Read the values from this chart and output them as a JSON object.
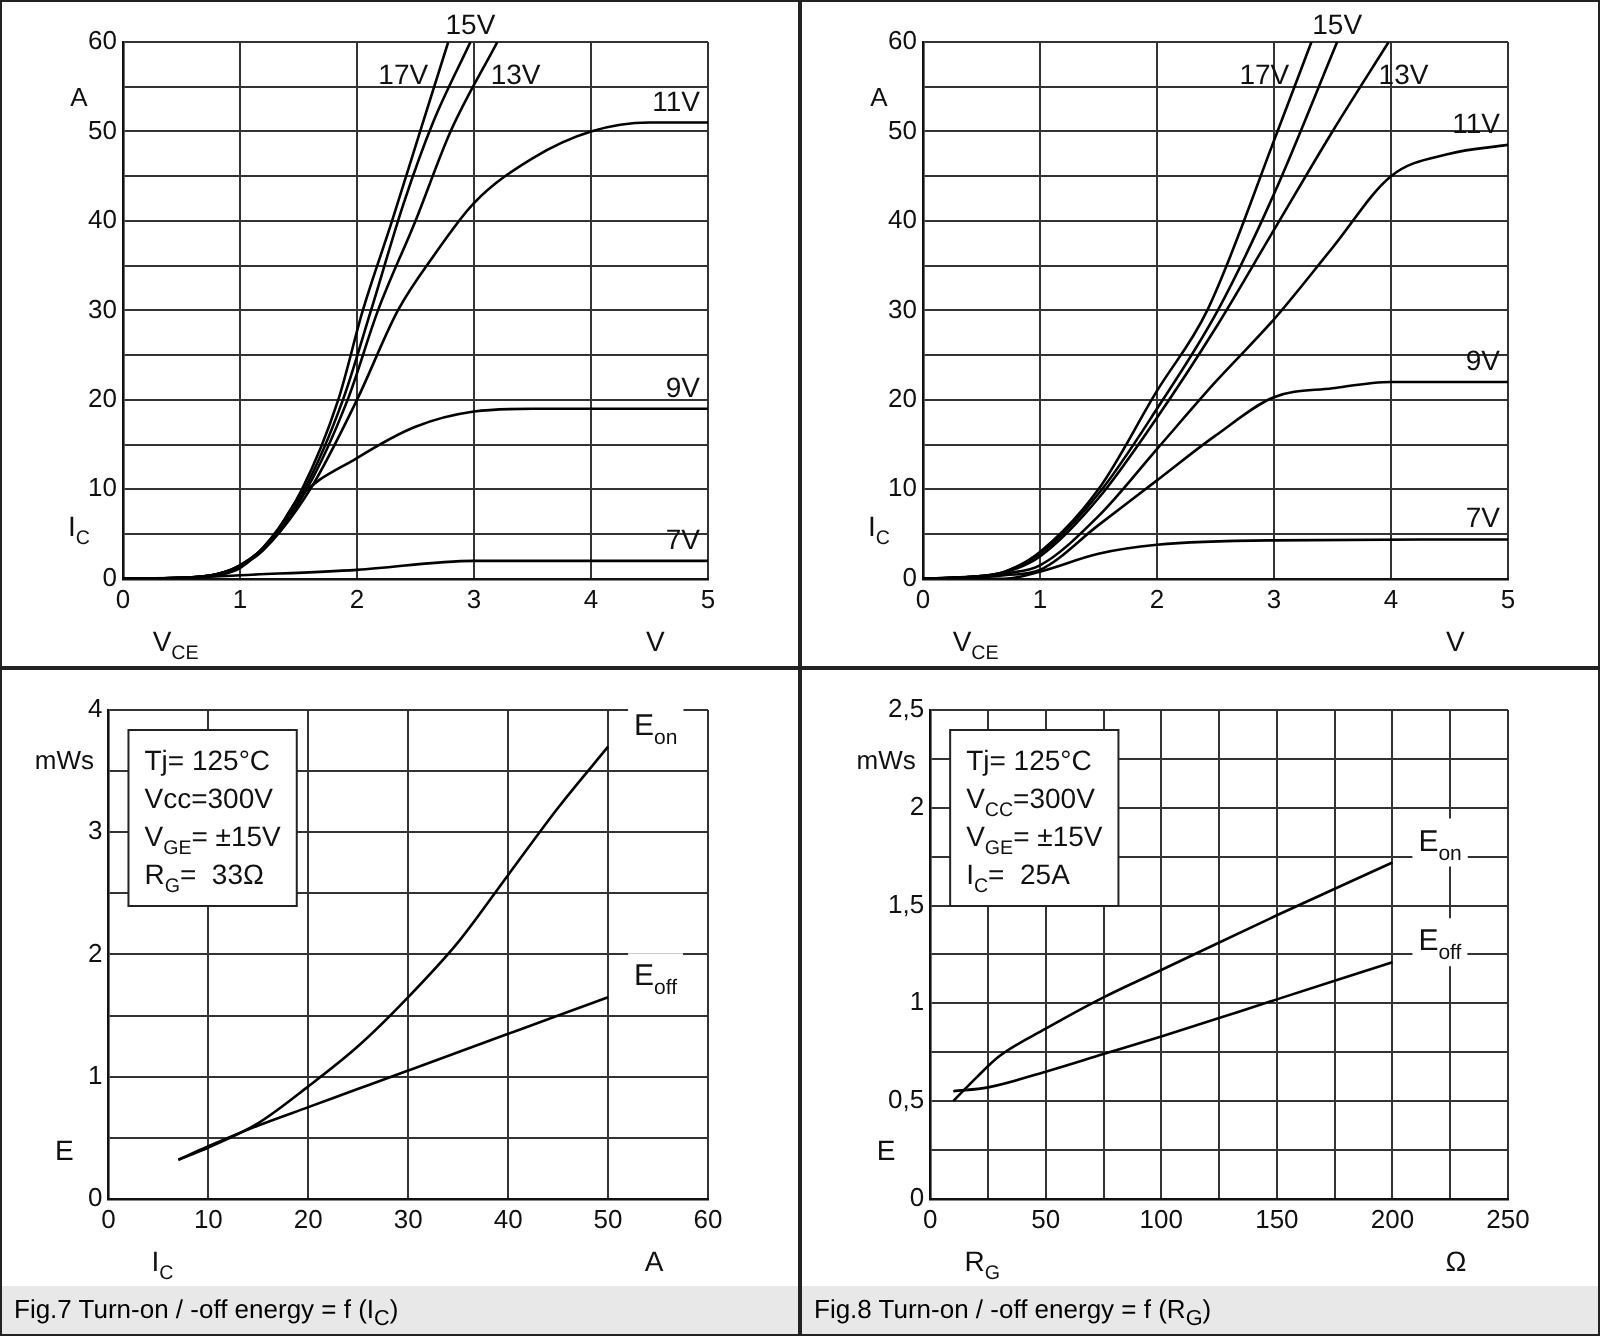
{
  "chart_data": [
    {
      "type": "line",
      "xlabel": "V$_{CE}$",
      "ylabel": "I$_{C}$",
      "annotations": [
        "A",
        "V"
      ],
      "xlim": [
        0,
        5
      ],
      "xticks": [
        0,
        1,
        2,
        3,
        4,
        5
      ],
      "ylim": [
        0,
        60
      ],
      "yticks": [
        0,
        {
          "value": 5,
          "label": null
        },
        10,
        {
          "value": 15,
          "label": null
        },
        20,
        {
          "value": 25,
          "label": null
        },
        30,
        {
          "value": 35,
          "label": null
        },
        40,
        {
          "value": 45,
          "label": null
        },
        50,
        {
          "value": 55,
          "label": null
        },
        60
      ],
      "grid": true,
      "legend": false,
      "marker": "none",
      "line_style": "solid",
      "series": [
        {
          "name": "17V",
          "color": "#000000",
          "x": [
            0,
            0.5,
            0.8,
            1,
            1.2,
            1.53,
            1.84,
            2.05,
            2.3,
            2.54,
            2.78
          ],
          "values": [
            0,
            0.1,
            0.5,
            1.5,
            3.5,
            10,
            20,
            30,
            40,
            50,
            60
          ]
        },
        {
          "name": "15V",
          "color": "#000000",
          "x": [
            0,
            0.5,
            0.8,
            1,
            1.2,
            1.55,
            1.88,
            2.12,
            2.4,
            2.65,
            2.97
          ],
          "values": [
            0,
            0.1,
            0.5,
            1.5,
            3.5,
            10,
            20,
            30,
            42,
            51,
            60
          ]
        },
        {
          "name": "13V",
          "color": "#000000",
          "x": [
            0,
            0.5,
            0.8,
            1,
            1.2,
            1.57,
            1.92,
            2.18,
            2.5,
            2.8,
            3.2
          ],
          "values": [
            0,
            0.1,
            0.5,
            1.4,
            3.3,
            10,
            20,
            30,
            40,
            50,
            60
          ]
        },
        {
          "name": "11V",
          "color": "#000000",
          "x": [
            0,
            0.5,
            0.8,
            1,
            1.2,
            1.6,
            2,
            2.35,
            2.65,
            3,
            3.5,
            4,
            4.5,
            5
          ],
          "values": [
            0,
            0.1,
            0.5,
            1.4,
            3.2,
            10,
            20,
            30,
            36,
            42,
            47,
            50,
            51,
            51
          ]
        },
        {
          "name": "9V",
          "color": "#000000",
          "x": [
            0,
            0.5,
            0.8,
            1,
            1.3,
            1.5,
            2,
            2.5,
            3,
            3.5,
            5
          ],
          "values": [
            0,
            0.1,
            0.4,
            1.2,
            5,
            9,
            13.5,
            17,
            18.7,
            19,
            19
          ]
        },
        {
          "name": "7V",
          "color": "#000000",
          "x": [
            0,
            0.5,
            1,
            2,
            3,
            5
          ],
          "values": [
            0,
            0.1,
            0.4,
            1,
            2,
            2
          ]
        }
      ]
    },
    {
      "type": "line",
      "xlabel": "V$_{CE}$",
      "ylabel": "I$_{C}$",
      "annotations": [
        "A",
        "V"
      ],
      "xlim": [
        0,
        5
      ],
      "xticks": [
        0,
        1,
        2,
        3,
        4,
        5
      ],
      "ylim": [
        0,
        60
      ],
      "yticks": [
        0,
        {
          "value": 5,
          "label": null
        },
        10,
        {
          "value": 15,
          "label": null
        },
        20,
        {
          "value": 25,
          "label": null
        },
        30,
        {
          "value": 35,
          "label": null
        },
        40,
        {
          "value": 45,
          "label": null
        },
        50,
        {
          "value": 55,
          "label": null
        },
        60
      ],
      "grid": true,
      "legend": false,
      "marker": "none",
      "line_style": "solid",
      "series": [
        {
          "name": "17V",
          "color": "#000000",
          "x": [
            0,
            0.5,
            0.7,
            1,
            1.5,
            2,
            2.43,
            3.03,
            3.32
          ],
          "values": [
            0,
            0.3,
            0.8,
            3,
            10,
            21,
            30,
            50,
            60
          ]
        },
        {
          "name": "15V",
          "color": "#000000",
          "x": [
            0,
            0.5,
            0.7,
            1,
            1.5,
            2,
            2.52,
            3,
            3.54
          ],
          "values": [
            0,
            0.3,
            0.8,
            2.8,
            9.5,
            19,
            30,
            43,
            60
          ]
        },
        {
          "name": "13V",
          "color": "#000000",
          "x": [
            0,
            0.5,
            0.7,
            1,
            1.5,
            2,
            2.5,
            3,
            3.5,
            3.98
          ],
          "values": [
            0,
            0.3,
            0.7,
            2.5,
            9,
            18,
            28,
            39,
            50,
            60
          ]
        },
        {
          "name": "11V",
          "color": "#000000",
          "x": [
            0,
            0.5,
            0.7,
            1,
            1.5,
            2,
            2.5,
            3,
            3.5,
            4,
            4.5,
            5
          ],
          "values": [
            0,
            0.3,
            0.6,
            1.5,
            7,
            14.5,
            22,
            29,
            37,
            45,
            47.5,
            48.5
          ]
        },
        {
          "name": "9V",
          "color": "#000000",
          "x": [
            0,
            0.5,
            0.7,
            1,
            1.5,
            2,
            2.5,
            3,
            3.5,
            4,
            5
          ],
          "values": [
            0,
            0.2,
            0.4,
            1,
            6,
            11,
            16,
            20.3,
            21.3,
            22,
            22
          ]
        },
        {
          "name": "7V",
          "color": "#000000",
          "x": [
            0,
            0.7,
            1,
            1.5,
            2,
            3,
            5
          ],
          "values": [
            0,
            0,
            0.8,
            2.8,
            3.8,
            4.3,
            4.4
          ]
        }
      ]
    },
    {
      "type": "line",
      "title": "Fig.7 Turn-on / -off energy = f (I$_{C}$)",
      "xlabel": "I$_{C}$",
      "ylabel": "E",
      "annotations": [
        "mWs",
        "A",
        "Tj= 125°C",
        "Vcc=300V",
        "V$_{GE}$= ±15V",
        "R$_{G}$=  33Ω"
      ],
      "xlim": [
        0,
        60
      ],
      "xticks": [
        0,
        10,
        20,
        30,
        40,
        50,
        60
      ],
      "ylim": [
        0,
        4
      ],
      "yticks": [
        0,
        {
          "value": 0.5,
          "label": null
        },
        1,
        {
          "value": 1.5,
          "label": null
        },
        2,
        {
          "value": 2.5,
          "label": null
        },
        3,
        {
          "value": 3.5,
          "label": null
        },
        4
      ],
      "grid": true,
      "legend": false,
      "marker": "none",
      "line_style": "solid",
      "series": [
        {
          "name": "E$_{on}$",
          "color": "#000000",
          "x": [
            7,
            10,
            15,
            20,
            25,
            30,
            35,
            40,
            45,
            50
          ],
          "values": [
            0.32,
            0.42,
            0.62,
            0.92,
            1.25,
            1.65,
            2.1,
            2.65,
            3.2,
            3.7
          ]
        },
        {
          "name": "E$_{off}$",
          "color": "#000000",
          "x": [
            7,
            10,
            15,
            20,
            25,
            30,
            40,
            50
          ],
          "values": [
            0.32,
            0.43,
            0.6,
            0.75,
            0.9,
            1.05,
            1.35,
            1.65
          ]
        }
      ]
    },
    {
      "type": "line",
      "title": "Fig.8 Turn-on / -off energy = f (R$_{G}$)",
      "xlabel": "R$_{G}$",
      "ylabel": "E",
      "annotations": [
        "mWs",
        "Ω",
        "Tj= 125°C",
        "V$_{CC}$=300V",
        "V$_{GE}$= ±15V",
        "I$_{C}$=  25A"
      ],
      "xlim": [
        0,
        250
      ],
      "xticks": [
        0,
        {
          "value": 25,
          "label": null
        },
        50,
        {
          "value": 75,
          "label": null
        },
        100,
        {
          "value": 125,
          "label": null
        },
        150,
        {
          "value": 175,
          "label": null
        },
        200,
        {
          "value": 225,
          "label": null
        },
        250
      ],
      "ylim": [
        0,
        2.5
      ],
      "yticks": [
        {
          "value": 0,
          "label": "0"
        },
        {
          "value": 0.25,
          "label": null
        },
        {
          "value": 0.5,
          "label": "0,5"
        },
        {
          "value": 0.75,
          "label": null
        },
        {
          "value": 1,
          "label": "1"
        },
        {
          "value": 1.25,
          "label": null
        },
        {
          "value": 1.5,
          "label": "1,5"
        },
        {
          "value": 1.75,
          "label": null
        },
        {
          "value": 2,
          "label": "2"
        },
        {
          "value": 2.25,
          "label": null
        },
        {
          "value": 2.5,
          "label": "2,5"
        }
      ],
      "grid": true,
      "legend": false,
      "marker": "none",
      "line_style": "solid",
      "series": [
        {
          "name": "E$_{on}$",
          "color": "#000000",
          "x": [
            10,
            20,
            30,
            50,
            75,
            100,
            150,
            200
          ],
          "values": [
            0.5,
            0.62,
            0.73,
            0.87,
            1.03,
            1.17,
            1.45,
            1.72
          ]
        },
        {
          "name": "E$_{off}$",
          "color": "#000000",
          "x": [
            10,
            25,
            50,
            75,
            100,
            150,
            200
          ],
          "values": [
            0.55,
            0.57,
            0.65,
            0.74,
            0.83,
            1.02,
            1.21
          ]
        }
      ]
    }
  ]
}
